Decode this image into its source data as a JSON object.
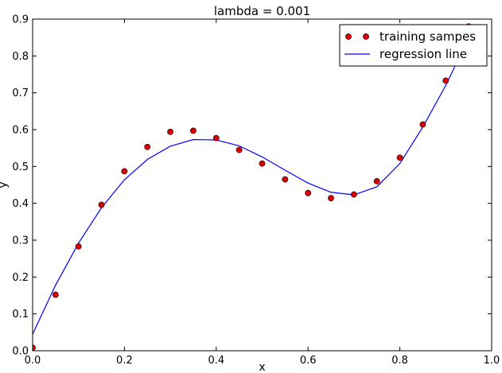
{
  "chart_data": {
    "type": "scatter+line",
    "title": "lambda = 0.001",
    "xlabel": "x",
    "ylabel": "y",
    "xlim": [
      0.0,
      1.0
    ],
    "ylim": [
      0.0,
      0.9
    ],
    "xticks": [
      0.0,
      0.2,
      0.4,
      0.6,
      0.8,
      1.0
    ],
    "xtick_labels": [
      "0.0",
      "0.2",
      "0.4",
      "0.6",
      "0.8",
      "1.0"
    ],
    "yticks": [
      0.0,
      0.1,
      0.2,
      0.3,
      0.4,
      0.5,
      0.6,
      0.7,
      0.8,
      0.9
    ],
    "ytick_labels": [
      "0.0",
      "0.1",
      "0.2",
      "0.3",
      "0.4",
      "0.5",
      "0.6",
      "0.7",
      "0.8",
      "0.9"
    ],
    "grid": false,
    "legend_position": "top-right",
    "series": [
      {
        "name": "training sampes",
        "kind": "scatter",
        "color": "#dd0000",
        "edge_color": "#000000",
        "x": [
          0.0,
          0.05,
          0.1,
          0.15,
          0.2,
          0.25,
          0.3,
          0.35,
          0.4,
          0.45,
          0.5,
          0.55,
          0.6,
          0.65,
          0.7,
          0.75,
          0.8,
          0.85,
          0.9,
          0.95
        ],
        "y": [
          0.008,
          0.152,
          0.283,
          0.396,
          0.487,
          0.553,
          0.594,
          0.597,
          0.577,
          0.545,
          0.508,
          0.465,
          0.428,
          0.414,
          0.424,
          0.46,
          0.524,
          0.614,
          0.733,
          0.88
        ]
      },
      {
        "name": "regression line",
        "kind": "line",
        "color": "#0000ff",
        "x": [
          0.0,
          0.05,
          0.1,
          0.15,
          0.2,
          0.25,
          0.3,
          0.35,
          0.4,
          0.45,
          0.5,
          0.55,
          0.6,
          0.65,
          0.7,
          0.75,
          0.8,
          0.85,
          0.9,
          0.95
        ],
        "y": [
          0.045,
          0.178,
          0.292,
          0.388,
          0.464,
          0.519,
          0.555,
          0.573,
          0.572,
          0.556,
          0.526,
          0.49,
          0.455,
          0.43,
          0.423,
          0.445,
          0.508,
          0.607,
          0.72,
          0.85
        ]
      }
    ]
  }
}
